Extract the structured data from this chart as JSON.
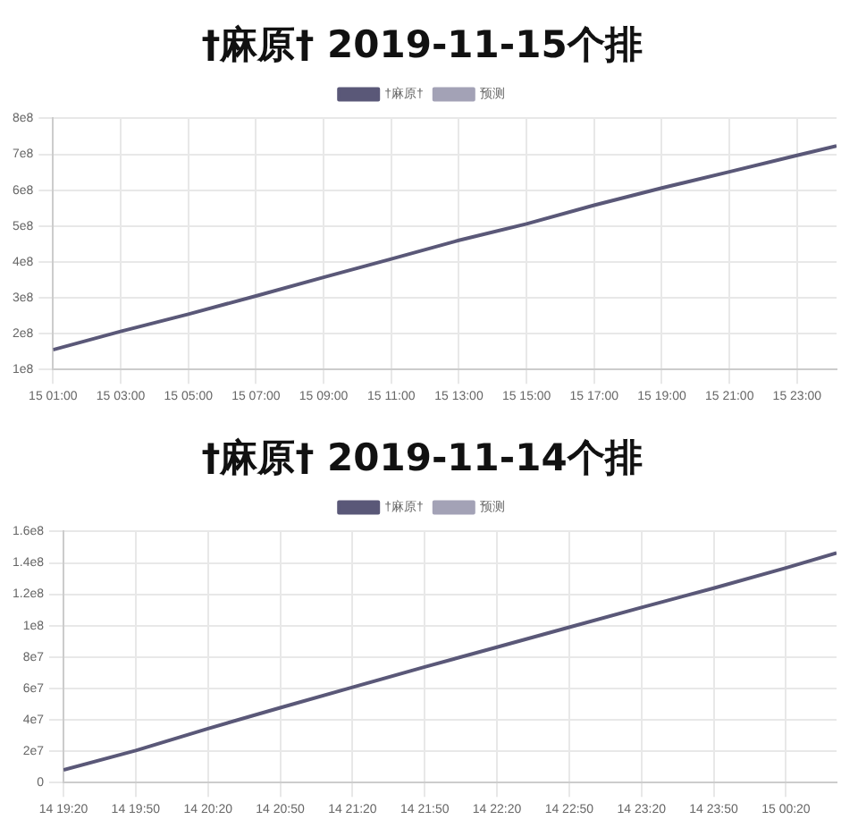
{
  "chart_data": [
    {
      "type": "line",
      "title": "†麻原† 2019-11-15个排",
      "legend": "top",
      "grid": true,
      "x": [
        "2019-11-15T01:00",
        "2019-11-15T03:00",
        "2019-11-15T05:00",
        "2019-11-15T07:00",
        "2019-11-15T09:00",
        "2019-11-15T11:00",
        "2019-11-15T13:00",
        "2019-11-15T15:00",
        "2019-11-15T17:00",
        "2019-11-15T19:00",
        "2019-11-15T21:00",
        "2019-11-15T23:00",
        "2019-11-16T00:10"
      ],
      "xlim": [
        "2019-11-15T01:00",
        "2019-11-16T00:10"
      ],
      "xticks": [
        {
          "value": "2019-11-15T01:00",
          "label": "15 01:00"
        },
        {
          "value": "2019-11-15T03:00",
          "label": "15 03:00"
        },
        {
          "value": "2019-11-15T05:00",
          "label": "15 05:00"
        },
        {
          "value": "2019-11-15T07:00",
          "label": "15 07:00"
        },
        {
          "value": "2019-11-15T09:00",
          "label": "15 09:00"
        },
        {
          "value": "2019-11-15T11:00",
          "label": "15 11:00"
        },
        {
          "value": "2019-11-15T13:00",
          "label": "15 13:00"
        },
        {
          "value": "2019-11-15T15:00",
          "label": "15 15:00"
        },
        {
          "value": "2019-11-15T17:00",
          "label": "15 17:00"
        },
        {
          "value": "2019-11-15T19:00",
          "label": "15 19:00"
        },
        {
          "value": "2019-11-15T21:00",
          "label": "15 21:00"
        },
        {
          "value": "2019-11-15T23:00",
          "label": "15 23:00"
        }
      ],
      "ylim": [
        100000000,
        800000000
      ],
      "yticks": [
        {
          "value": 100000000,
          "label": "1e8"
        },
        {
          "value": 200000000,
          "label": "2e8"
        },
        {
          "value": 300000000,
          "label": "3e8"
        },
        {
          "value": 400000000,
          "label": "4e8"
        },
        {
          "value": 500000000,
          "label": "5e8"
        },
        {
          "value": 600000000,
          "label": "6e8"
        },
        {
          "value": 700000000,
          "label": "7e8"
        },
        {
          "value": 800000000,
          "label": "8e8"
        }
      ],
      "series": [
        {
          "name": "†麻原†",
          "color": "#5a5878",
          "values": [
            155000000,
            206000000,
            254000000,
            305000000,
            357000000,
            408000000,
            460000000,
            506000000,
            558000000,
            606000000,
            651000000,
            697000000,
            723000000
          ]
        },
        {
          "name": "预测",
          "color": "#a3a2b6",
          "values": [
            null,
            null,
            null,
            null,
            null,
            null,
            null,
            null,
            null,
            null,
            null,
            null,
            null
          ]
        }
      ]
    },
    {
      "type": "line",
      "title": "†麻原† 2019-11-14个排",
      "legend": "top",
      "grid": true,
      "x": [
        "2019-11-14T19:20",
        "2019-11-14T19:50",
        "2019-11-14T20:20",
        "2019-11-14T20:50",
        "2019-11-14T21:20",
        "2019-11-14T21:50",
        "2019-11-14T22:20",
        "2019-11-14T22:50",
        "2019-11-14T23:20",
        "2019-11-14T23:50",
        "2019-11-15T00:20",
        "2019-11-15T00:41"
      ],
      "xlim": [
        "2019-11-14T19:20",
        "2019-11-15T00:41"
      ],
      "xticks": [
        {
          "value": "2019-11-14T19:20",
          "label": "14 19:20"
        },
        {
          "value": "2019-11-14T19:50",
          "label": "14 19:50"
        },
        {
          "value": "2019-11-14T20:20",
          "label": "14 20:20"
        },
        {
          "value": "2019-11-14T20:50",
          "label": "14 20:50"
        },
        {
          "value": "2019-11-14T21:20",
          "label": "14 21:20"
        },
        {
          "value": "2019-11-14T21:50",
          "label": "14 21:50"
        },
        {
          "value": "2019-11-14T22:20",
          "label": "14 22:20"
        },
        {
          "value": "2019-11-14T22:50",
          "label": "14 22:50"
        },
        {
          "value": "2019-11-14T23:20",
          "label": "14 23:20"
        },
        {
          "value": "2019-11-14T23:50",
          "label": "14 23:50"
        },
        {
          "value": "2019-11-15T00:20",
          "label": "15 00:20"
        }
      ],
      "ylim": [
        0,
        160000000
      ],
      "yticks": [
        0,
        {
          "value": 20000000,
          "label": "2e7"
        },
        {
          "value": 40000000,
          "label": "4e7"
        },
        {
          "value": 60000000,
          "label": "6e7"
        },
        {
          "value": 80000000,
          "label": "8e7"
        },
        {
          "value": 100000000,
          "label": "1e8"
        },
        {
          "value": 120000000,
          "label": "1.2e8"
        },
        {
          "value": 140000000,
          "label": "1.4e8"
        },
        {
          "value": 160000000,
          "label": "1.6e8"
        }
      ],
      "series": [
        {
          "name": "†麻原†",
          "color": "#5a5878",
          "values": [
            8100000,
            20400000,
            34400000,
            47700000,
            60700000,
            73700000,
            86300000,
            99000000,
            111600000,
            123900000,
            136800000,
            146300000
          ]
        },
        {
          "name": "预测",
          "color": "#a3a2b6",
          "values": [
            null,
            null,
            null,
            null,
            null,
            null,
            null,
            null,
            null,
            null,
            null,
            null
          ]
        }
      ]
    }
  ]
}
